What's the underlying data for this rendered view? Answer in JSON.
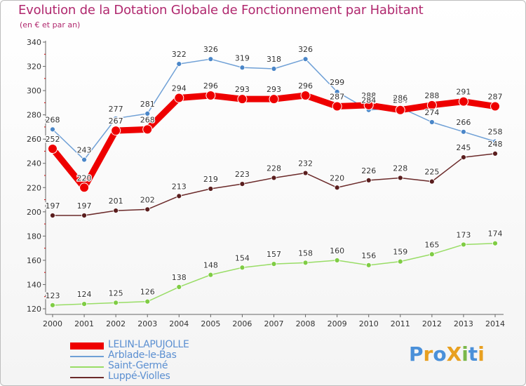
{
  "title": "Evolution de la Dotation Globale de Fonctionnement par Habitant",
  "subtitle": "(en € et par an)",
  "colors": {
    "title": "#b0286e",
    "axis": "#666666",
    "grid": "#d9d9d9",
    "legend_text": "#5b8fd1"
  },
  "logo": {
    "text": "ProXiti",
    "letters": [
      {
        "ch": "P",
        "color": "#4a90d9"
      },
      {
        "ch": "r",
        "color": "#e8a020"
      },
      {
        "ch": "o",
        "color": "#4a90d9"
      },
      {
        "ch": "X",
        "color": "#e8a020"
      },
      {
        "ch": "i",
        "color": "#7ab84a"
      },
      {
        "ch": "t",
        "color": "#4a90d9"
      },
      {
        "ch": "i",
        "color": "#e8a020"
      }
    ]
  },
  "chart_data": {
    "type": "line",
    "title": "Evolution de la Dotation Globale de Fonctionnement par Habitant",
    "subtitle": "(en € et par an)",
    "x": [
      "2000",
      "2001",
      "2002",
      "2003",
      "2004",
      "2005",
      "2006",
      "2007",
      "2008",
      "2009",
      "2010",
      "2011",
      "2012",
      "2013",
      "2014"
    ],
    "ylim": [
      120,
      340
    ],
    "yticks": [
      120,
      140,
      160,
      180,
      200,
      220,
      240,
      260,
      280,
      300,
      320,
      340
    ],
    "grid": false,
    "legend_position": "bottom-left",
    "series": [
      {
        "name": "LELIN-LAPUJOLLE",
        "color": "#ee0000",
        "weight": "bold",
        "values": [
          252,
          220,
          267,
          268,
          294,
          296,
          293,
          293,
          296,
          287,
          288,
          284,
          288,
          291,
          287
        ]
      },
      {
        "name": "Arblade-le-Bas",
        "color": "#6fa0d6",
        "marker": "#4a86c8",
        "weight": "thin",
        "values": [
          268,
          243,
          277,
          281,
          322,
          326,
          319,
          318,
          326,
          299,
          284,
          286,
          274,
          266,
          258
        ]
      },
      {
        "name": "Saint-Germé",
        "color": "#99dd66",
        "marker": "#7fcc44",
        "weight": "thin",
        "values": [
          123,
          124,
          125,
          126,
          138,
          148,
          154,
          157,
          158,
          160,
          156,
          159,
          165,
          173,
          174
        ]
      },
      {
        "name": "Luppé-Violles",
        "color": "#6b2a2a",
        "marker": "#5a1e1e",
        "weight": "thin",
        "values": [
          197,
          197,
          201,
          202,
          213,
          219,
          223,
          228,
          232,
          220,
          226,
          228,
          225,
          245,
          248
        ]
      }
    ]
  }
}
